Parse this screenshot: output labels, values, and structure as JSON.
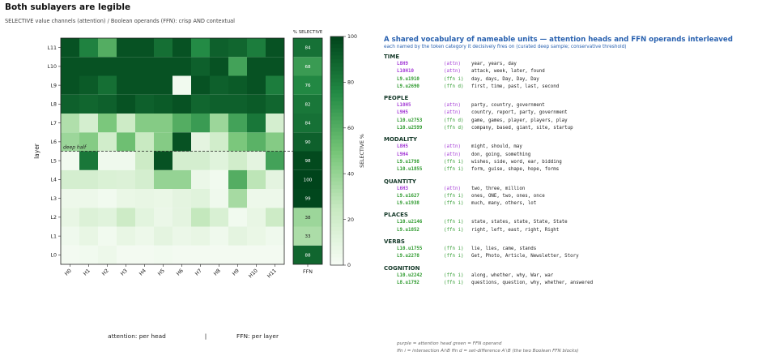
{
  "header": {
    "title": "Both sublayers are legible",
    "subtitle": "SELECTIVE value channels (attention) / Boolean operands (FFN): crisp AND contextual"
  },
  "chart_data": {
    "type": "heatmap",
    "x_labels": [
      "H0",
      "H1",
      "H2",
      "H3",
      "H4",
      "H5",
      "H6",
      "H7",
      "H8",
      "H9",
      "H10",
      "H11"
    ],
    "y_labels": [
      "L0",
      "L1",
      "L2",
      "L3",
      "L4",
      "L5",
      "L6",
      "L7",
      "L8",
      "L9",
      "L10",
      "L11"
    ],
    "ylabel": "layer",
    "xlabel_left": "attention: per head",
    "xlabel_sep": "|",
    "xlabel_right": "FFN: per layer",
    "ffn_header": "% SELECTIVE",
    "ffn_xlabel": "FFN",
    "colorbar_label": "SELECTIVE %",
    "colorbar_ticks": [
      0,
      20,
      40,
      60,
      80,
      100
    ],
    "value_range": [
      0,
      100
    ],
    "annotation": "deep half",
    "grid": false,
    "values": [
      [
        2,
        3,
        5,
        2,
        2,
        3,
        2,
        2,
        2,
        2,
        2,
        2
      ],
      [
        4,
        8,
        3,
        8,
        5,
        10,
        6,
        8,
        4,
        10,
        7,
        4
      ],
      [
        8,
        14,
        12,
        22,
        11,
        6,
        10,
        26,
        16,
        3,
        8,
        22
      ],
      [
        5,
        5,
        3,
        7,
        8,
        7,
        10,
        12,
        4,
        35,
        5,
        5
      ],
      [
        18,
        18,
        15,
        14,
        18,
        40,
        40,
        6,
        3,
        60,
        28,
        10
      ],
      [
        3,
        82,
        4,
        4,
        22,
        95,
        18,
        18,
        12,
        20,
        10,
        65
      ],
      [
        38,
        45,
        20,
        52,
        24,
        45,
        95,
        10,
        20,
        48,
        58,
        45
      ],
      [
        32,
        18,
        48,
        22,
        45,
        45,
        60,
        68,
        38,
        65,
        82,
        18
      ],
      [
        90,
        88,
        90,
        95,
        90,
        92,
        95,
        88,
        90,
        90,
        92,
        88
      ],
      [
        95,
        92,
        85,
        95,
        95,
        95,
        3,
        95,
        90,
        92,
        95,
        80
      ],
      [
        95,
        95,
        95,
        95,
        95,
        95,
        95,
        90,
        95,
        65,
        95,
        95
      ],
      [
        95,
        78,
        60,
        95,
        95,
        85,
        95,
        75,
        90,
        88,
        80,
        95
      ]
    ],
    "ffn_values": [
      88,
      33,
      38,
      99,
      100,
      98,
      90,
      84,
      82,
      76,
      68,
      84
    ]
  },
  "panel": {
    "title": "A shared vocabulary of nameable units — attention heads and FFN operands interleaved",
    "subtitle": "each named by the token category it decisively fires on (curated deep sample; conservative threshold)",
    "categories": [
      {
        "name": "TIME",
        "units": [
          {
            "id": "L8H9",
            "type": "(attn)",
            "kind": "attn",
            "words": "year, years, day"
          },
          {
            "id": "L10H10",
            "type": "(attn)",
            "kind": "attn",
            "words": "attack, week, later, found"
          },
          {
            "id": "L9.u1910",
            "type": "(ffn i)",
            "kind": "ffn",
            "words": "day, days, Day, Day, Day"
          },
          {
            "id": "L9.u2690",
            "type": "(ffn d)",
            "kind": "ffn",
            "words": "first, time, past, last, second"
          }
        ]
      },
      {
        "name": "PEOPLE",
        "units": [
          {
            "id": "L10H5",
            "type": "(attn)",
            "kind": "attn",
            "words": "party, country, government"
          },
          {
            "id": "L9H5",
            "type": "(attn)",
            "kind": "attn",
            "words": "country, report, party, government"
          },
          {
            "id": "L10.u2753",
            "type": "(ffn d)",
            "kind": "ffn",
            "words": "game, games, player, players, play"
          },
          {
            "id": "L10.u2599",
            "type": "(ffn d)",
            "kind": "ffn",
            "words": "company, based, giant, site, startup"
          }
        ]
      },
      {
        "name": "MODALITY",
        "units": [
          {
            "id": "L8H5",
            "type": "(attn)",
            "kind": "attn",
            "words": "might, should, may"
          },
          {
            "id": "L9H4",
            "type": "(attn)",
            "kind": "attn",
            "words": "don, going, something"
          },
          {
            "id": "L9.u1798",
            "type": "(ffn i)",
            "kind": "ffn",
            "words": "wishes, side, word, ear, bidding"
          },
          {
            "id": "L10.u1855",
            "type": "(ffn i)",
            "kind": "ffn",
            "words": "form, guise, shape, hope, forms"
          }
        ]
      },
      {
        "name": "QUANTITY",
        "units": [
          {
            "id": "L6H3",
            "type": "(attn)",
            "kind": "attn",
            "words": "two, three, million"
          },
          {
            "id": "L9.u1627",
            "type": "(ffn i)",
            "kind": "ffn",
            "words": "ones, ONE, two, ones, once"
          },
          {
            "id": "L9.u1938",
            "type": "(ffn i)",
            "kind": "ffn",
            "words": "much, many, others, lot"
          }
        ]
      },
      {
        "name": "PLACES",
        "units": [
          {
            "id": "L10.u2146",
            "type": "(ffn i)",
            "kind": "ffn",
            "words": "state, states, state, State, State"
          },
          {
            "id": "L9.u1852",
            "type": "(ffn i)",
            "kind": "ffn",
            "words": "right, left, east, right, Right"
          }
        ]
      },
      {
        "name": "VERBS",
        "units": [
          {
            "id": "L10.u1755",
            "type": "(ffn i)",
            "kind": "ffn",
            "words": "lie, lies, came, stands"
          },
          {
            "id": "L9.u2278",
            "type": "(ffn i)",
            "kind": "ffn",
            "words": "Get, Photo, Article, Newsletter, Story"
          }
        ]
      },
      {
        "name": "COGNITION",
        "units": [
          {
            "id": "L10.u2242",
            "type": "(ffn i)",
            "kind": "ffn",
            "words": "along, whether, why, War, war"
          },
          {
            "id": "L8.u1792",
            "type": "(ffn i)",
            "kind": "ffn",
            "words": "questions, question, why, whether, answered"
          }
        ]
      }
    ],
    "legend_line1": "purple = attention head   green = FFN operand",
    "legend_line2": "ffn i = intersection A∩B    ffn d = set-difference A∖B  (the two Boolean FFN blocks)"
  }
}
